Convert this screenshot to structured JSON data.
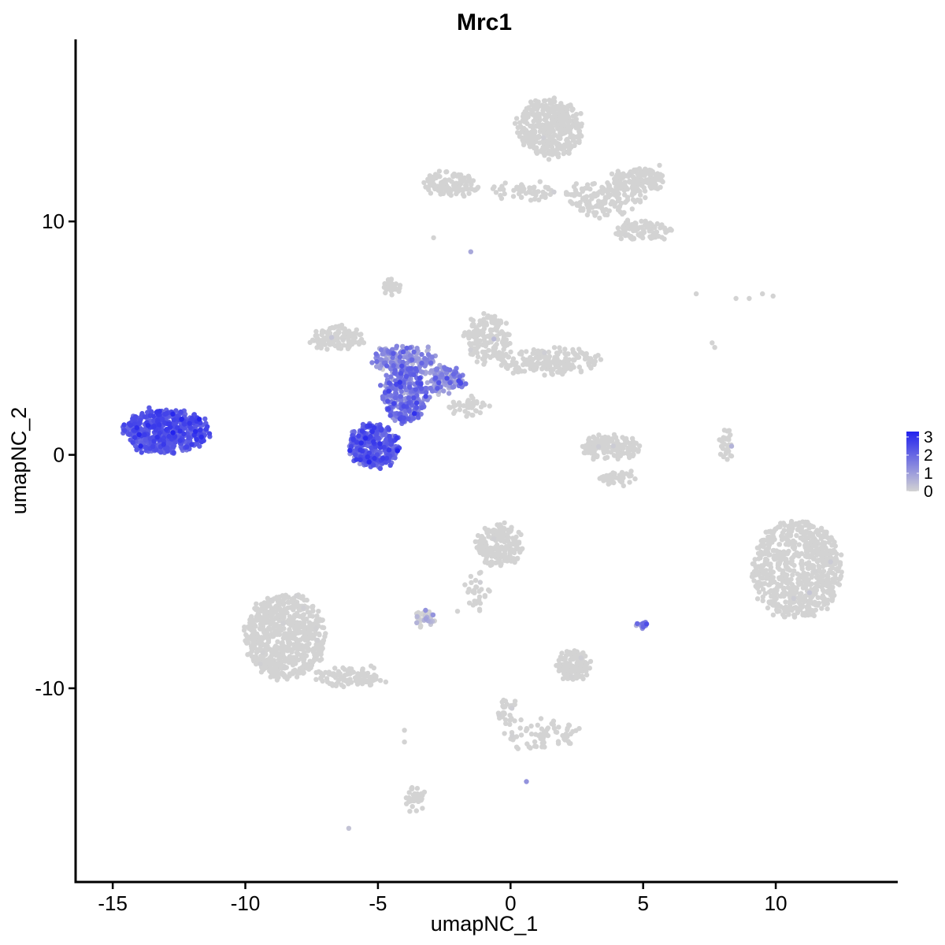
{
  "chart_data": {
    "type": "scatter",
    "title": "Mrc1",
    "xlabel": "umapNC_1",
    "ylabel": "umapNC_2",
    "xlim": [
      -16.4,
      14.6
    ],
    "ylim": [
      -18.3,
      17.8
    ],
    "x_ticks": [
      -15,
      -10,
      -5,
      0,
      5,
      10
    ],
    "x_tick_labels": [
      "-15",
      "-10",
      "-5",
      "0",
      "5",
      "10"
    ],
    "y_ticks": [
      -10,
      0,
      10
    ],
    "y_tick_labels": [
      "-10",
      "0",
      "10"
    ],
    "grid": false,
    "legend": {
      "position": "right",
      "type": "colorbar",
      "range": [
        0,
        3.3
      ],
      "ticks": [
        0,
        1,
        2,
        3
      ],
      "tick_labels": [
        "0",
        "1",
        "2",
        "3"
      ],
      "low_color": "#d3d3d3",
      "high_color": "#2222ee"
    },
    "clusters": [
      {
        "cx": -13.0,
        "cy": 1.0,
        "rx": 1.6,
        "ry": 0.9,
        "n": 520,
        "expr_mean": 2.3,
        "expr_sd": 0.35
      },
      {
        "cx": -5.2,
        "cy": 0.4,
        "rx": 0.9,
        "ry": 0.9,
        "n": 320,
        "expr_mean": 2.1,
        "expr_sd": 0.4
      },
      {
        "cx": -4.0,
        "cy": 2.5,
        "rx": 0.8,
        "ry": 1.2,
        "n": 260,
        "expr_mean": 1.6,
        "expr_sd": 0.5
      },
      {
        "cx": -4.0,
        "cy": 4.1,
        "rx": 1.2,
        "ry": 0.5,
        "n": 150,
        "expr_mean": 1.2,
        "expr_sd": 0.5
      },
      {
        "cx": -2.5,
        "cy": 3.2,
        "rx": 0.8,
        "ry": 0.6,
        "n": 110,
        "expr_mean": 1.3,
        "expr_sd": 0.6
      },
      {
        "cx": -6.5,
        "cy": 5.0,
        "rx": 1.0,
        "ry": 0.5,
        "n": 110,
        "expr_mean": 0.0,
        "expr_sd": 0.1
      },
      {
        "cx": -0.9,
        "cy": 5.0,
        "rx": 0.8,
        "ry": 1.0,
        "n": 150,
        "expr_mean": 0.1,
        "expr_sd": 0.2
      },
      {
        "cx": 1.5,
        "cy": 4.0,
        "rx": 2.0,
        "ry": 0.5,
        "n": 200,
        "expr_mean": 0.0,
        "expr_sd": 0.1
      },
      {
        "cx": -1.5,
        "cy": 2.0,
        "rx": 0.8,
        "ry": 0.4,
        "n": 40,
        "expr_mean": 0.0,
        "expr_sd": 0.1
      },
      {
        "cx": -4.5,
        "cy": 7.2,
        "rx": 0.3,
        "ry": 0.3,
        "n": 30,
        "expr_mean": 0.0,
        "expr_sd": 0.1
      },
      {
        "cx": 1.5,
        "cy": 14.0,
        "rx": 1.2,
        "ry": 1.2,
        "n": 400,
        "expr_mean": 0.0,
        "expr_sd": 0.05
      },
      {
        "cx": -2.3,
        "cy": 11.6,
        "rx": 1.0,
        "ry": 0.5,
        "n": 120,
        "expr_mean": 0.0,
        "expr_sd": 0.05
      },
      {
        "cx": 4.8,
        "cy": 11.8,
        "rx": 1.0,
        "ry": 0.5,
        "n": 150,
        "expr_mean": 0.0,
        "expr_sd": 0.05
      },
      {
        "cx": 3.5,
        "cy": 11.0,
        "rx": 1.5,
        "ry": 0.8,
        "n": 150,
        "expr_mean": 0.0,
        "expr_sd": 0.05
      },
      {
        "cx": 5.0,
        "cy": 9.6,
        "rx": 1.0,
        "ry": 0.4,
        "n": 100,
        "expr_mean": 0.0,
        "expr_sd": 0.05
      },
      {
        "cx": 0.5,
        "cy": 11.3,
        "rx": 1.2,
        "ry": 0.3,
        "n": 50,
        "expr_mean": 0.0,
        "expr_sd": 0.05
      },
      {
        "cx": 3.8,
        "cy": 0.3,
        "rx": 1.1,
        "ry": 0.5,
        "n": 150,
        "expr_mean": 0.0,
        "expr_sd": 0.1
      },
      {
        "cx": 8.1,
        "cy": 0.2,
        "rx": 0.2,
        "ry": 0.9,
        "n": 30,
        "expr_mean": 0.0,
        "expr_sd": 0.2
      },
      {
        "cx": 10.8,
        "cy": -4.9,
        "rx": 1.7,
        "ry": 2.1,
        "n": 700,
        "expr_mean": 0.0,
        "expr_sd": 0.1
      },
      {
        "cx": -0.4,
        "cy": -3.9,
        "rx": 0.8,
        "ry": 0.9,
        "n": 200,
        "expr_mean": 0.0,
        "expr_sd": 0.1
      },
      {
        "cx": -8.5,
        "cy": -7.8,
        "rx": 1.5,
        "ry": 1.8,
        "n": 650,
        "expr_mean": 0.0,
        "expr_sd": 0.05
      },
      {
        "cx": -6.0,
        "cy": -9.5,
        "rx": 1.3,
        "ry": 0.4,
        "n": 100,
        "expr_mean": 0.0,
        "expr_sd": 0.05
      },
      {
        "cx": -3.2,
        "cy": -7.0,
        "rx": 0.4,
        "ry": 0.3,
        "n": 40,
        "expr_mean": 0.3,
        "expr_sd": 0.5
      },
      {
        "cx": 2.4,
        "cy": -9.0,
        "rx": 0.6,
        "ry": 0.6,
        "n": 120,
        "expr_mean": 0.0,
        "expr_sd": 0.05
      },
      {
        "cx": 4.9,
        "cy": -7.3,
        "rx": 0.2,
        "ry": 0.2,
        "n": 12,
        "expr_mean": 1.5,
        "expr_sd": 0.5
      },
      {
        "cx": 1.2,
        "cy": -12.0,
        "rx": 1.5,
        "ry": 0.6,
        "n": 70,
        "expr_mean": 0.0,
        "expr_sd": 0.05
      },
      {
        "cx": -3.6,
        "cy": -14.8,
        "rx": 0.3,
        "ry": 0.6,
        "n": 40,
        "expr_mean": 0.0,
        "expr_sd": 0.05
      },
      {
        "cx": -1.2,
        "cy": -5.8,
        "rx": 0.4,
        "ry": 0.9,
        "n": 30,
        "expr_mean": 0.0,
        "expr_sd": 0.05
      },
      {
        "cx": -0.1,
        "cy": -11.0,
        "rx": 0.3,
        "ry": 0.6,
        "n": 30,
        "expr_mean": 0.0,
        "expr_sd": 0.05
      },
      {
        "cx": 4.0,
        "cy": -1.0,
        "rx": 0.7,
        "ry": 0.3,
        "n": 40,
        "expr_mean": 0.0,
        "expr_sd": 0.05
      }
    ],
    "sparse_points": [
      [
        7.0,
        6.9,
        0
      ],
      [
        8.5,
        6.7,
        0
      ],
      [
        9.0,
        6.7,
        0
      ],
      [
        9.5,
        6.9,
        0
      ],
      [
        9.9,
        6.8,
        0
      ],
      [
        7.6,
        4.8,
        0
      ],
      [
        7.7,
        4.6,
        0
      ],
      [
        0.6,
        -14.0,
        1.2
      ],
      [
        -6.1,
        -16.0,
        0.3
      ],
      [
        -4.0,
        -11.8,
        0
      ],
      [
        -4.0,
        -12.3,
        0
      ],
      [
        -1.5,
        8.7,
        0.8
      ],
      [
        -2.9,
        9.3,
        0
      ],
      [
        -2.0,
        -6.7,
        0
      ]
    ]
  }
}
